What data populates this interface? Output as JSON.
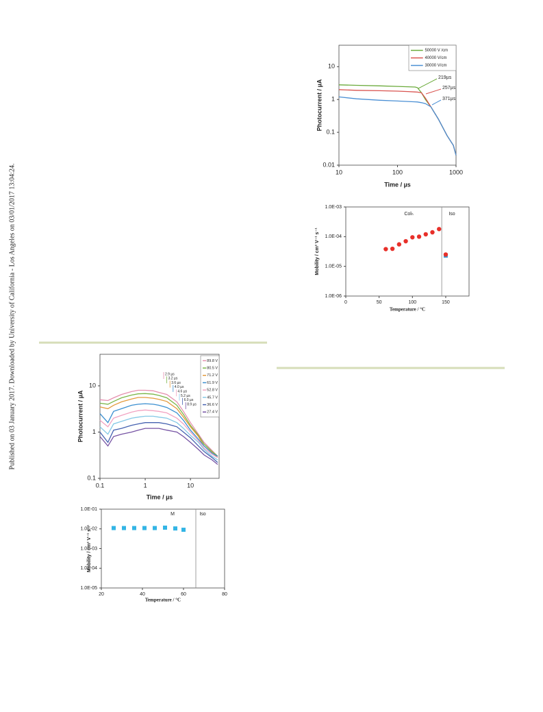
{
  "sidebar": "Published on 03 January 2017. Downloaded by University of California - Los Angeles on 03/01/2017 13:04:24.",
  "chart_data": [
    {
      "type": "line",
      "x_label": "Time / µs",
      "y_label": "Photocurrent / µA",
      "xlog": true,
      "ylog": true,
      "xlim": [
        10,
        1000
      ],
      "ylim": [
        0.01,
        45
      ],
      "xticks": [
        10,
        100,
        1000
      ],
      "yticks": [
        0.01,
        0.1,
        1,
        10
      ],
      "legend": "upper right",
      "x": [
        10,
        20,
        50,
        100,
        150,
        200,
        219,
        257,
        300,
        371,
        500,
        700,
        900,
        1000
      ],
      "series": [
        {
          "name": "50000 V /cm",
          "color": "#6aaa3a",
          "values": [
            2.8,
            2.7,
            2.6,
            2.5,
            2.45,
            2.4,
            2.3,
            1.6,
            1.0,
            0.6,
            0.25,
            0.08,
            0.04,
            0.02
          ]
        },
        {
          "name": "40000 V/cm",
          "color": "#d9534f",
          "values": [
            2.0,
            1.9,
            1.85,
            1.8,
            1.75,
            1.7,
            1.68,
            1.6,
            1.1,
            0.6,
            0.25,
            0.08,
            0.04,
            0.02
          ]
        },
        {
          "name": "30000 V/cm",
          "color": "#4a8fd4",
          "values": [
            1.2,
            1.05,
            0.95,
            0.9,
            0.87,
            0.85,
            0.84,
            0.8,
            0.75,
            0.6,
            0.25,
            0.08,
            0.04,
            0.02
          ]
        }
      ],
      "annotations": [
        "219µs",
        "257µs",
        "371µs"
      ]
    },
    {
      "type": "scatter",
      "x_label": "Temperature / °C",
      "y_label": "Mobility / cm² V⁻¹ s⁻¹",
      "ylog": true,
      "xlim": [
        0,
        185
      ],
      "ylim": [
        1e-06,
        0.001
      ],
      "xticks": [
        0,
        50,
        100,
        150
      ],
      "yticks": [
        {
          "value": 1e-06,
          "label": "1.0E-06"
        },
        {
          "value": 1e-05,
          "label": "1.0E-05"
        },
        {
          "value": 0.0001,
          "label": "1.0E-04"
        },
        {
          "value": 0.001,
          "label": "1.0E-03"
        }
      ],
      "series": [
        {
          "color": "#3b9fd8",
          "marker": "square",
          "x": [
            150
          ],
          "values": [
            2.3e-05
          ]
        },
        {
          "color": "#e8302a",
          "marker": "circle",
          "x": [
            60,
            70,
            80,
            90,
            100,
            110,
            120,
            130,
            140,
            150
          ],
          "values": [
            3.8e-05,
            3.9e-05,
            5.5e-05,
            7e-05,
            9.5e-05,
            0.0001,
            0.00012,
            0.00014,
            0.00018,
            2.5e-05
          ]
        }
      ],
      "phase_labels": [
        "Colₕ",
        "Iso"
      ],
      "transition": 144
    },
    {
      "type": "line",
      "x_label": "Time / µs",
      "y_label": "Photocurrent / µA",
      "xlog": true,
      "ylog": true,
      "xlim": [
        0.1,
        43
      ],
      "ylim": [
        0.1,
        48
      ],
      "xticks": [
        0.1,
        1,
        10
      ],
      "yticks": [
        0.1,
        1,
        10
      ],
      "legend": "upper right",
      "x": [
        0.1,
        0.15,
        0.2,
        0.3,
        0.5,
        0.7,
        1,
        1.5,
        2,
        3,
        5,
        7,
        10,
        15,
        20,
        30,
        40
      ],
      "series": [
        {
          "name": "89.8 V",
          "color": "#e68fae",
          "values": [
            5,
            4.8,
            5.5,
            6.5,
            7.5,
            8,
            8,
            7.8,
            7.2,
            6.5,
            4.5,
            2.8,
            1.6,
            0.9,
            0.6,
            0.4,
            0.3
          ]
        },
        {
          "name": "80.5 V",
          "color": "#7ab648",
          "values": [
            4.2,
            4,
            4.6,
            5.5,
            6.3,
            6.7,
            6.8,
            6.6,
            6.2,
            5.5,
            3.8,
            2.4,
            1.4,
            0.85,
            0.55,
            0.38,
            0.3
          ]
        },
        {
          "name": "71.2 V",
          "color": "#e39a3c",
          "values": [
            3.5,
            3.2,
            3.8,
            4.5,
            5.2,
            5.6,
            5.6,
            5.4,
            5.1,
            4.6,
            3.2,
            2.1,
            1.3,
            0.8,
            0.5,
            0.36,
            0.28
          ]
        },
        {
          "name": "61.9 V",
          "color": "#3a8fd0",
          "values": [
            2.5,
            1.6,
            2.8,
            3.2,
            3.8,
            4,
            4.1,
            4,
            3.8,
            3.4,
            2.6,
            1.8,
            1.1,
            0.7,
            0.5,
            0.35,
            0.3
          ]
        },
        {
          "name": "52.8 V",
          "color": "#f2a3c2",
          "values": [
            1.8,
            1.3,
            2,
            2.3,
            2.7,
            2.9,
            3,
            2.9,
            2.8,
            2.6,
            2,
            1.5,
            1,
            0.65,
            0.45,
            0.33,
            0.28
          ]
        },
        {
          "name": "45.7 V",
          "color": "#84c8e6",
          "values": [
            1.3,
            0.9,
            1.5,
            1.7,
            2,
            2.1,
            2.2,
            2.2,
            2.1,
            2,
            1.6,
            1.2,
            0.85,
            0.6,
            0.42,
            0.3,
            0.25
          ]
        },
        {
          "name": "36.6 V",
          "color": "#4561b0",
          "values": [
            1,
            0.6,
            1.1,
            1.2,
            1.4,
            1.5,
            1.6,
            1.6,
            1.6,
            1.5,
            1.3,
            1,
            0.75,
            0.5,
            0.38,
            0.28,
            0.22
          ]
        },
        {
          "name": "27.4 V",
          "color": "#7552a3",
          "values": [
            0.8,
            0.5,
            0.8,
            0.9,
            1,
            1.1,
            1.2,
            1.2,
            1.2,
            1.1,
            1,
            0.8,
            0.6,
            0.42,
            0.32,
            0.25,
            0.2
          ]
        }
      ],
      "annotations": [
        "2.9 µs",
        "3.2 µs",
        "3.6 µs",
        "4.0 µs",
        "4.6 µs",
        "5.2 µs",
        "6.0 µs",
        "8.9 µs"
      ]
    },
    {
      "type": "scatter",
      "x_label": "Temperature / °C",
      "y_label": "Mobility / cm² V⁻¹ s⁻¹",
      "ylog": true,
      "xlim": [
        20,
        80
      ],
      "ylim": [
        1e-05,
        0.1
      ],
      "xticks": [
        20,
        40,
        60,
        80
      ],
      "yticks": [
        {
          "value": 1e-05,
          "label": "1.0E-05"
        },
        {
          "value": 0.0001,
          "label": "1.0E-04"
        },
        {
          "value": 0.001,
          "label": "1.0E-03"
        },
        {
          "value": 0.01,
          "label": "1.0E-02"
        },
        {
          "value": 0.1,
          "label": "1.0E-01"
        }
      ],
      "series": [
        {
          "color": "#33b5e5",
          "marker": "square",
          "x": [
            26,
            31,
            36,
            41,
            46,
            51,
            56,
            60
          ],
          "values": [
            0.011,
            0.011,
            0.011,
            0.011,
            0.011,
            0.0115,
            0.0105,
            0.009
          ]
        }
      ],
      "phase_labels": [
        "M",
        "Iso"
      ],
      "transition": 66
    }
  ]
}
